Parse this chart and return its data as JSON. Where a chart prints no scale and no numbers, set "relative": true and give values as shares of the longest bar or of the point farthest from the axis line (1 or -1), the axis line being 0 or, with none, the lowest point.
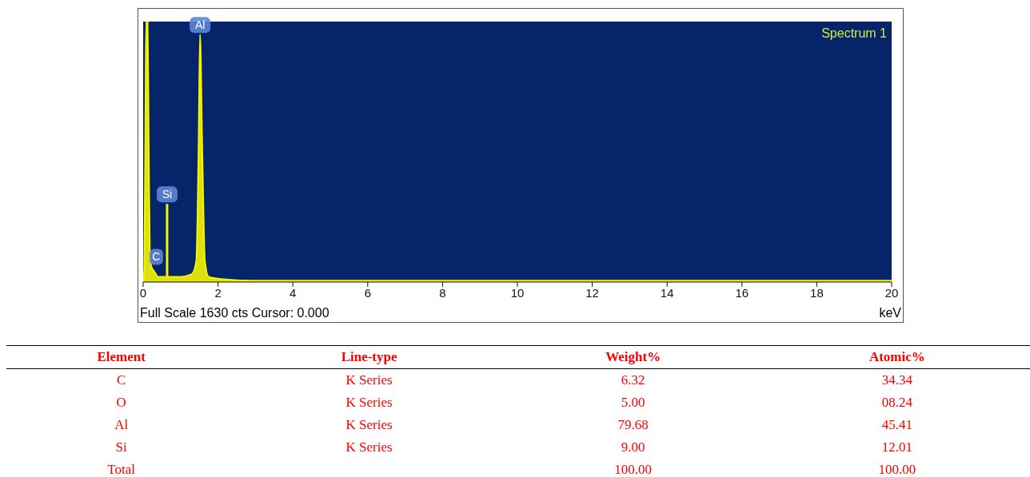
{
  "chart_data": [
    {
      "type": "area",
      "title": "Spectrum 1",
      "xlabel": "keV",
      "relative": true,
      "xlim": [
        0,
        20
      ],
      "xticks": [
        0,
        2,
        4,
        6,
        8,
        10,
        12,
        14,
        16,
        18,
        20
      ],
      "grid": false,
      "x": [
        0,
        0.03,
        0.06,
        0.08,
        0.12,
        0.15,
        0.18,
        0.22,
        0.3,
        0.4,
        0.6,
        1.0,
        1.3,
        1.42,
        1.48,
        1.52,
        1.58,
        1.65,
        1.75,
        2.2,
        3,
        20
      ],
      "series": [
        {
          "color": "#f5f500",
          "values": [
            0,
            0.05,
            0.6,
            1,
            1,
            0.5,
            0.1,
            0.06,
            0.04,
            0.02,
            0.02,
            0.02,
            0.03,
            0.08,
            0.5,
            0.95,
            0.5,
            0.08,
            0.02,
            0.01,
            0.005,
            0.005
          ]
        }
      ],
      "ref_lines": [
        {
          "axis": "x",
          "value": 0.64,
          "label": "Si",
          "color": "#f5f500"
        }
      ],
      "annotations": [
        {
          "text": "C",
          "x": 0.35,
          "y": 0.06
        },
        {
          "text": "Al",
          "x": 1.52,
          "y": 0.95
        },
        "Full Scale 1630 cts Cursor: 0.000"
      ]
    },
    {
      "type": "other",
      "categories": [
        "Element",
        "Line-type",
        "Weight%",
        "Atomic%"
      ],
      "y_categories": [
        "C",
        "O",
        "Al",
        "Si",
        "Total"
      ],
      "cell_labels": [
        [
          "K Series",
          "6.32",
          "34.34"
        ],
        [
          "K Series",
          "5.00",
          "08.24"
        ],
        [
          "K Series",
          "79.68",
          "45.41"
        ],
        [
          "K Series",
          "9.00",
          "12.01"
        ],
        [
          null,
          "100.00",
          "100.00"
        ]
      ]
    }
  ]
}
